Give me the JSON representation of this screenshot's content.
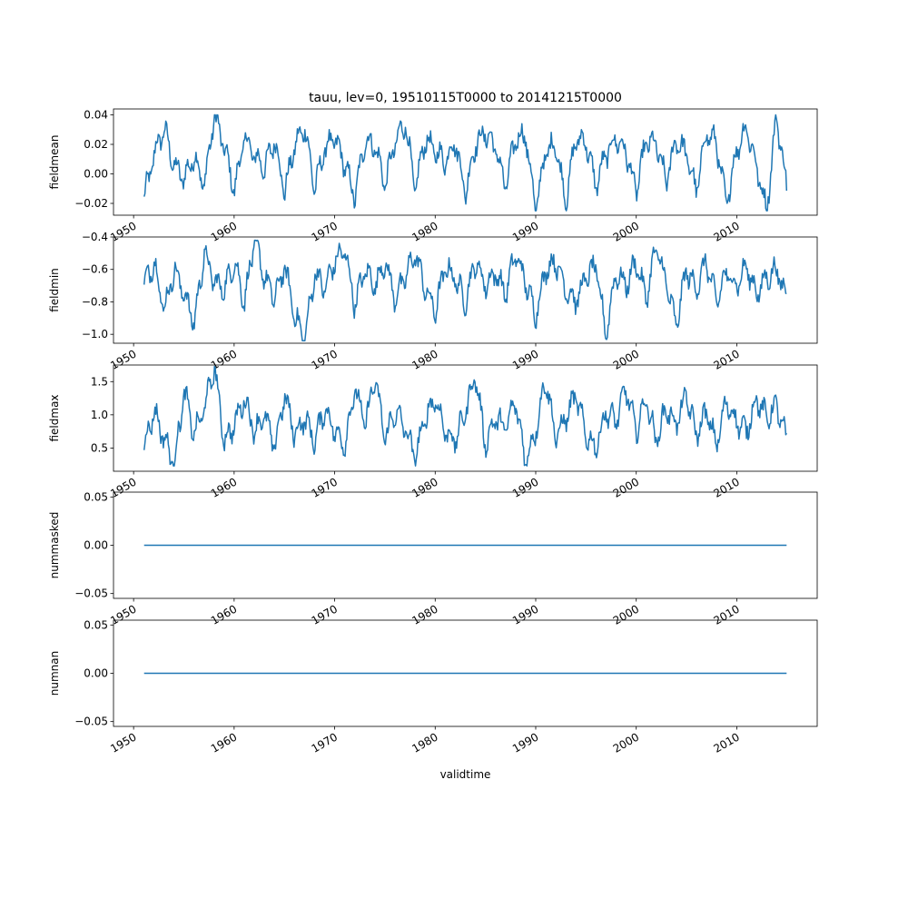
{
  "title": "tauu, lev=0, 19510115T0000 to 20141215T0000",
  "xlabel": "validtime",
  "x_ticks": [
    "1950",
    "1960",
    "1970",
    "1980",
    "1990",
    "2000",
    "2010"
  ],
  "line_color": "#1f77b4",
  "chart_data": [
    {
      "type": "line",
      "ylabel": "fieldmean",
      "ylim": [
        -0.028,
        0.044
      ],
      "y_ticks": [
        "0.04",
        "0.02",
        "0.00",
        "−0.02"
      ],
      "x_range": [
        "1951-01-15",
        "2014-12-15"
      ],
      "x_tick_values": [
        "1950",
        "1960",
        "1970",
        "1980",
        "1990",
        "2000",
        "2010"
      ],
      "series": [
        {
          "x_start": "1951-01",
          "x_end": "2014-12",
          "step": "1 month",
          "values_yearly_samples": [
            -0.017,
            0.013,
            0.031,
            0.005,
            -0.003,
            0.012,
            -0.008,
            0.04,
            0.018,
            -0.011,
            0.025,
            0.012,
            0.004,
            0.023,
            -0.012,
            0.019,
            0.032,
            -0.01,
            0.017,
            0.024,
            0.006,
            -0.016,
            0.023,
            0.019,
            -0.007,
            0.021,
            0.035,
            -0.011,
            0.024,
            0.015,
            0.009,
            0.022,
            -0.013,
            0.02,
            0.028,
            0.018,
            -0.009,
            0.024,
            0.026,
            -0.024,
            0.015,
            0.02,
            -0.019,
            0.024,
            0.022,
            -0.008,
            0.013,
            0.024,
            0.015,
            -0.012,
            0.022,
            0.02,
            -0.005,
            0.023,
            0.014,
            -0.012,
            0.028,
            0.021,
            -0.021,
            0.016,
            0.032,
            0.005,
            -0.025,
            0.04,
            -0.009
          ],
          "summary": {
            "min": -0.025,
            "max": 0.04
          }
        }
      ]
    },
    {
      "type": "line",
      "ylabel": "fieldmin",
      "ylim": [
        -1.055,
        -0.4
      ],
      "y_ticks": [
        "−0.4",
        "−0.6",
        "−0.8",
        "−1.0"
      ],
      "series": [
        {
          "x_start": "1951-01",
          "x_end": "2014-12",
          "step": "1 month",
          "values_yearly_samples": [
            -0.7,
            -0.55,
            -0.85,
            -0.6,
            -0.75,
            -0.93,
            -0.5,
            -0.68,
            -0.72,
            -0.55,
            -0.8,
            -0.42,
            -0.65,
            -0.78,
            -0.58,
            -0.88,
            -1.04,
            -0.62,
            -0.72,
            -0.55,
            -0.48,
            -0.82,
            -0.6,
            -0.7,
            -0.55,
            -0.78,
            -0.65,
            -0.5,
            -0.72,
            -0.86,
            -0.58,
            -0.66,
            -0.8,
            -0.55,
            -0.7,
            -0.62,
            -0.75,
            -0.5,
            -0.68,
            -0.88,
            -0.6,
            -0.55,
            -0.72,
            -0.8,
            -0.65,
            -0.58,
            -1.0,
            -0.62,
            -0.7,
            -0.55,
            -0.78,
            -0.46,
            -0.68,
            -0.95,
            -0.6,
            -0.72,
            -0.55,
            -0.8,
            -0.62,
            -0.7,
            -0.58,
            -0.75,
            -0.65,
            -0.6,
            -0.78
          ],
          "summary": {
            "min": -1.04,
            "max": -0.42
          }
        }
      ]
    },
    {
      "type": "line",
      "ylabel": "fieldmax",
      "ylim": [
        0.15,
        1.75
      ],
      "y_ticks": [
        "1.5",
        "1.0",
        "0.5"
      ],
      "series": [
        {
          "x_start": "1951-01",
          "x_end": "2014-12",
          "step": "1 month",
          "values_yearly_samples": [
            0.55,
            1.05,
            0.65,
            0.25,
            1.35,
            0.7,
            1.1,
            1.72,
            0.6,
            0.85,
            1.25,
            0.75,
            1.0,
            0.5,
            1.3,
            0.7,
            0.95,
            0.6,
            1.1,
            0.75,
            0.55,
            1.4,
            0.85,
            1.55,
            0.65,
            1.05,
            0.8,
            0.35,
            0.95,
            1.25,
            0.75,
            0.6,
            1.05,
            1.6,
            0.55,
            0.95,
            0.8,
            1.2,
            0.3,
            0.75,
            1.55,
            0.65,
            0.95,
            1.3,
            0.7,
            0.5,
            1.05,
            0.9,
            1.4,
            0.75,
            1.25,
            0.6,
            1.1,
            0.85,
            1.3,
            0.7,
            1.05,
            0.55,
            1.2,
            0.9,
            0.75,
            1.25,
            0.95,
            1.15,
            0.6
          ],
          "summary": {
            "min": 0.23,
            "max": 1.73
          }
        }
      ]
    },
    {
      "type": "line",
      "ylabel": "nummasked",
      "ylim": [
        -0.055,
        0.055
      ],
      "y_ticks": [
        "0.05",
        "0.00",
        "−0.05"
      ],
      "series": [
        {
          "x_start": "1951-01",
          "x_end": "2014-12",
          "constant": 0.0
        }
      ]
    },
    {
      "type": "line",
      "ylabel": "numnan",
      "ylim": [
        -0.055,
        0.055
      ],
      "y_ticks": [
        "0.05",
        "0.00",
        "−0.05"
      ],
      "series": [
        {
          "x_start": "1951-01",
          "x_end": "2014-12",
          "constant": 0.0
        }
      ]
    }
  ]
}
